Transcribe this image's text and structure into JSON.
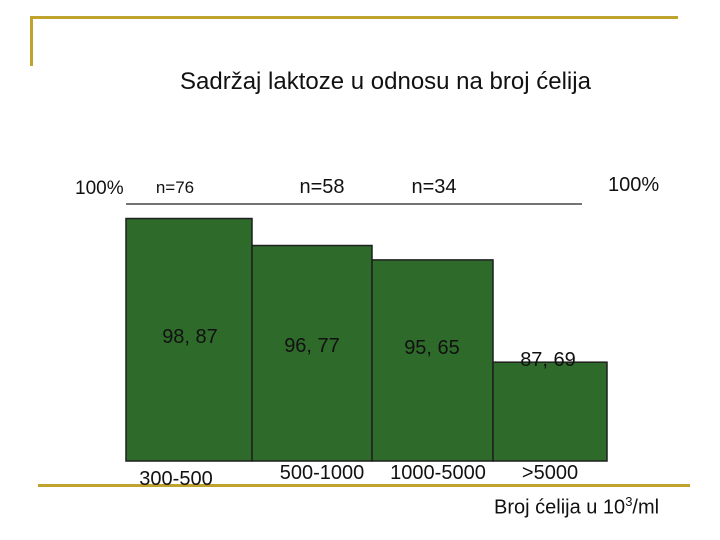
{
  "slide": {
    "accent_color": "#bfa32c"
  },
  "chart_data": {
    "type": "bar",
    "title": "Sadržaj laktoze u odnosu na broj ćelija",
    "categories": [
      "300-500",
      "500-1000",
      "1000-5000",
      ">5000"
    ],
    "values": [
      98.87,
      96.77,
      95.65,
      87.69
    ],
    "value_labels": [
      "98, 87",
      "96, 77",
      "95, 65",
      "87, 69"
    ],
    "counts": [
      "n=76",
      "n=58",
      "n=34",
      ""
    ],
    "ref_left": "100%",
    "ref_right": "100%",
    "xlabel_prefix": "Broj ćelija u 10",
    "xlabel_sup": "3",
    "xlabel_suffix": "/ml",
    "ylabel": "",
    "ylim": [
      0,
      100
    ],
    "bar_color": "#2e6b2a",
    "grid": false
  }
}
